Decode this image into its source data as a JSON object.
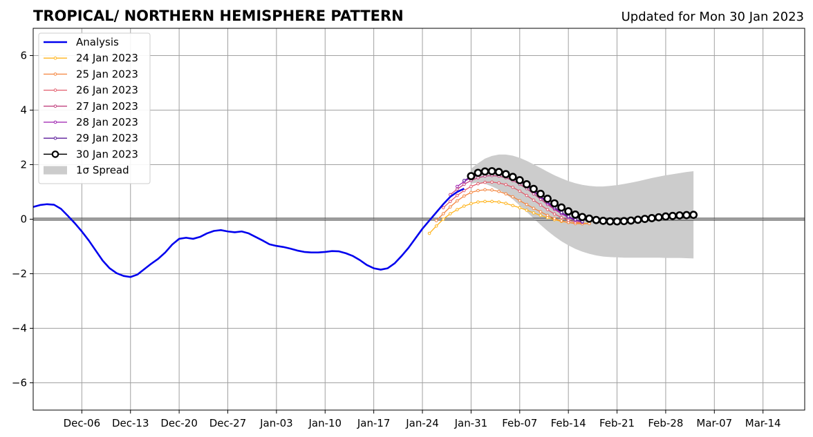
{
  "chart_data": {
    "type": "line",
    "title": "TROPICAL/ NORTHERN HEMISPHERE PATTERN",
    "subtitle": "Updated for Mon 30 Jan 2023",
    "xlabel": "",
    "ylabel": "",
    "xlim": [
      "2022-11-29",
      "2023-03-20"
    ],
    "ylim": [
      -7,
      7
    ],
    "grid": true,
    "legend_position": "upper-left",
    "x_ticks": [
      "Dec-06",
      "Dec-13",
      "Dec-20",
      "Dec-27",
      "Jan-03",
      "Jan-10",
      "Jan-17",
      "Jan-24",
      "Jan-31",
      "Feb-07",
      "Feb-14",
      "Feb-21",
      "Feb-28",
      "Mar-07",
      "Mar-14"
    ],
    "x_tick_dates": [
      "2022-12-06",
      "2022-12-13",
      "2022-12-20",
      "2022-12-27",
      "2023-01-03",
      "2023-01-10",
      "2023-01-17",
      "2023-01-24",
      "2023-01-31",
      "2023-02-07",
      "2023-02-14",
      "2023-02-21",
      "2023-02-28",
      "2023-03-07",
      "2023-03-14"
    ],
    "y_ticks": [
      -6,
      -4,
      -2,
      0,
      2,
      4,
      6
    ],
    "y_tick_labels": [
      "−6",
      "−4",
      "−2",
      "0",
      "2",
      "4",
      "6"
    ],
    "analysis": {
      "name": "Analysis",
      "color": "#0000ee",
      "start_date": "2022-11-29",
      "values": [
        0.45,
        0.52,
        0.55,
        0.53,
        0.38,
        0.12,
        -0.15,
        -0.45,
        -0.78,
        -1.15,
        -1.52,
        -1.8,
        -1.98,
        -2.08,
        -2.12,
        -2.03,
        -1.83,
        -1.63,
        -1.45,
        -1.22,
        -0.93,
        -0.72,
        -0.68,
        -0.72,
        -0.65,
        -0.52,
        -0.43,
        -0.4,
        -0.45,
        -0.48,
        -0.45,
        -0.52,
        -0.65,
        -0.78,
        -0.92,
        -0.98,
        -1.02,
        -1.08,
        -1.15,
        -1.2,
        -1.22,
        -1.22,
        -1.2,
        -1.17,
        -1.18,
        -1.25,
        -1.35,
        -1.5,
        -1.68,
        -1.8,
        -1.85,
        -1.8,
        -1.62,
        -1.35,
        -1.05,
        -0.7,
        -0.35,
        -0.05,
        0.25,
        0.55,
        0.82,
        1.0,
        1.12
      ]
    },
    "forecasts": [
      {
        "name": "24 Jan 2023",
        "color": "#ffb31a",
        "start_date": "2023-01-25",
        "values": [
          -0.52,
          -0.25,
          0.0,
          0.2,
          0.35,
          0.48,
          0.57,
          0.63,
          0.65,
          0.65,
          0.63,
          0.58,
          0.5,
          0.42,
          0.33,
          0.23,
          0.14,
          0.06,
          -0.02,
          -0.08,
          -0.12,
          -0.14,
          -0.15,
          -0.15
        ]
      },
      {
        "name": "25 Jan 2023",
        "color": "#f4853e",
        "start_date": "2023-01-26",
        "values": [
          -0.05,
          0.2,
          0.45,
          0.67,
          0.85,
          0.98,
          1.05,
          1.08,
          1.07,
          1.02,
          0.93,
          0.82,
          0.68,
          0.54,
          0.4,
          0.27,
          0.14,
          0.03,
          -0.06,
          -0.12,
          -0.16,
          -0.17,
          -0.16
        ]
      },
      {
        "name": "26 Jan 2023",
        "color": "#e15b6b",
        "start_date": "2023-01-27",
        "values": [
          0.42,
          0.65,
          0.87,
          1.05,
          1.2,
          1.3,
          1.35,
          1.36,
          1.33,
          1.27,
          1.17,
          1.03,
          0.87,
          0.7,
          0.52,
          0.35,
          0.19,
          0.06,
          -0.04,
          -0.1,
          -0.12
        ]
      },
      {
        "name": "27 Jan 2023",
        "color": "#c1407e",
        "start_date": "2023-01-28",
        "values": [
          0.9,
          1.1,
          1.28,
          1.42,
          1.52,
          1.58,
          1.6,
          1.58,
          1.52,
          1.42,
          1.28,
          1.12,
          0.93,
          0.73,
          0.54,
          0.36,
          0.2,
          0.07,
          -0.03,
          -0.09
        ]
      },
      {
        "name": "28 Jan 2023",
        "color": "#9a1aad",
        "start_date": "2023-01-29",
        "values": [
          1.2,
          1.38,
          1.52,
          1.62,
          1.68,
          1.7,
          1.68,
          1.62,
          1.52,
          1.38,
          1.21,
          1.01,
          0.8,
          0.59,
          0.39,
          0.21,
          0.06,
          -0.04,
          -0.1
        ]
      },
      {
        "name": "29 Jan 2023",
        "color": "#5a1a9a",
        "start_date": "2023-01-30",
        "values": [
          1.42,
          1.56,
          1.66,
          1.72,
          1.74,
          1.72,
          1.66,
          1.56,
          1.42,
          1.25,
          1.05,
          0.84,
          0.63,
          0.43,
          0.25,
          0.1,
          -0.02,
          -0.09
        ]
      }
    ],
    "current": {
      "name": "30 Jan 2023",
      "color": "#000000",
      "start_date": "2023-01-31",
      "values": [
        1.58,
        1.7,
        1.75,
        1.76,
        1.73,
        1.65,
        1.55,
        1.43,
        1.28,
        1.11,
        0.93,
        0.75,
        0.58,
        0.43,
        0.29,
        0.17,
        0.08,
        0.02,
        -0.03,
        -0.06,
        -0.08,
        -0.08,
        -0.07,
        -0.05,
        -0.02,
        0.01,
        0.04,
        0.07,
        0.1,
        0.12,
        0.14,
        0.15,
        0.16
      ]
    },
    "spread": {
      "name": "1σ Spread",
      "color": "#cccccc",
      "start_date": "2023-01-31",
      "upper": [
        1.85,
        2.05,
        2.22,
        2.32,
        2.37,
        2.37,
        2.33,
        2.25,
        2.14,
        2.01,
        1.88,
        1.74,
        1.61,
        1.5,
        1.4,
        1.32,
        1.26,
        1.22,
        1.2,
        1.2,
        1.22,
        1.25,
        1.29,
        1.34,
        1.39,
        1.45,
        1.51,
        1.56,
        1.61,
        1.65,
        1.69,
        1.73,
        1.76
      ],
      "lower": [
        1.3,
        1.35,
        1.3,
        1.2,
        1.08,
        0.92,
        0.73,
        0.5,
        0.27,
        0.03,
        -0.21,
        -0.43,
        -0.63,
        -0.81,
        -0.96,
        -1.09,
        -1.19,
        -1.27,
        -1.33,
        -1.37,
        -1.39,
        -1.4,
        -1.41,
        -1.41,
        -1.41,
        -1.41,
        -1.41,
        -1.41,
        -1.42,
        -1.42,
        -1.42,
        -1.43,
        -1.44
      ]
    }
  }
}
